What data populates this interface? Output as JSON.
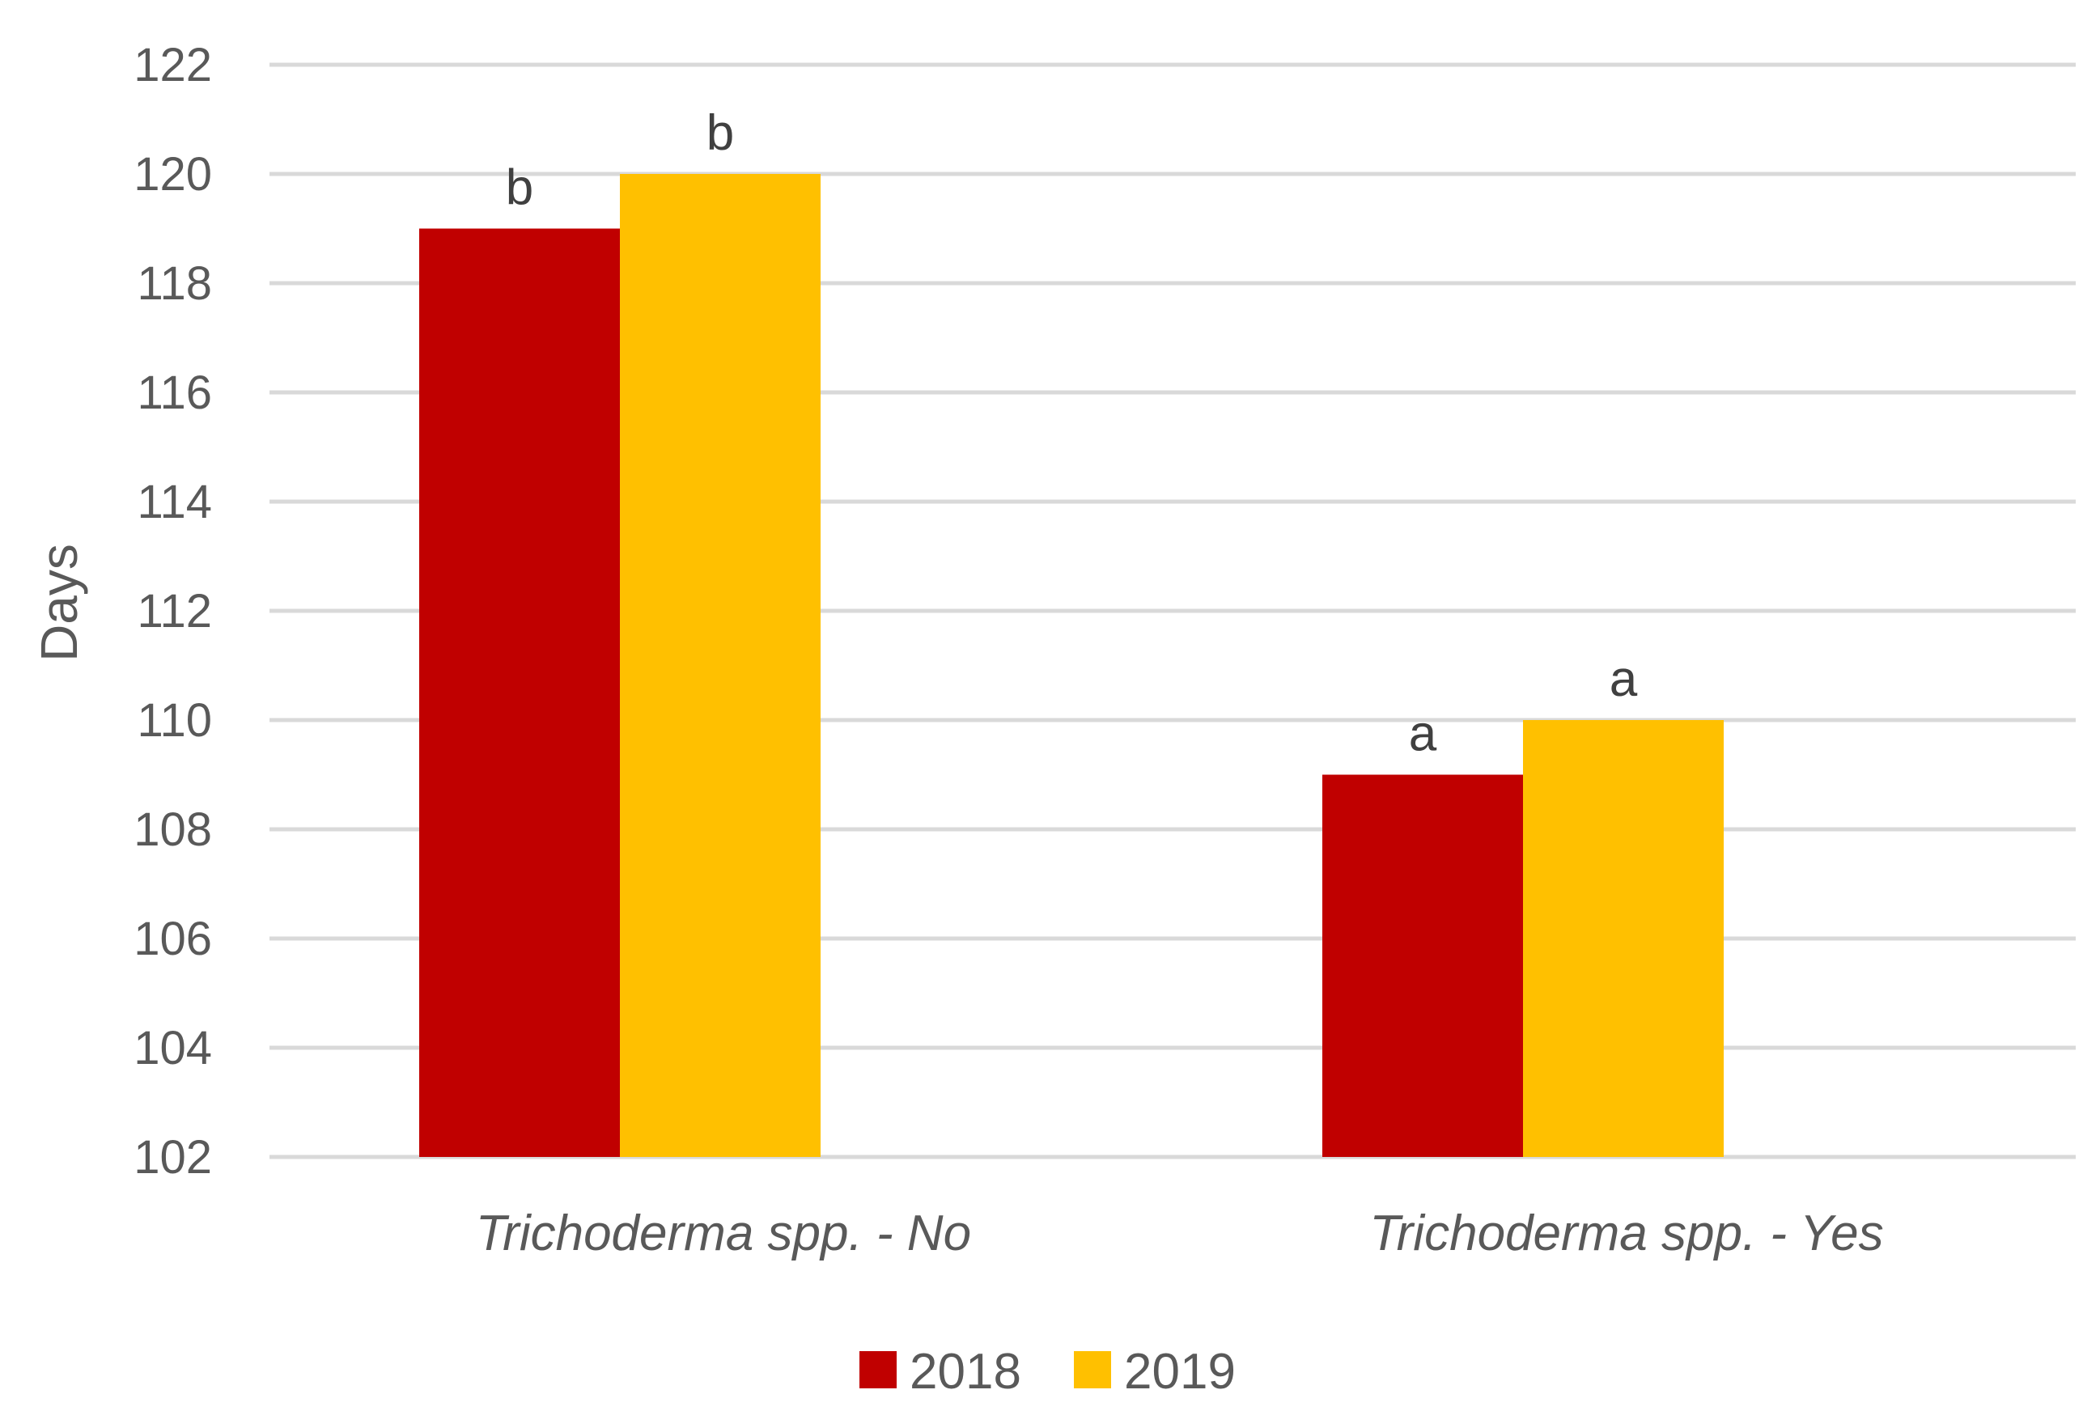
{
  "chart_data": {
    "type": "bar",
    "title": "",
    "xlabel": "",
    "ylabel": "Days",
    "ylim": [
      102,
      122
    ],
    "yticks": [
      102,
      104,
      106,
      108,
      110,
      112,
      114,
      116,
      118,
      120,
      122
    ],
    "grid": true,
    "legend_position": "bottom",
    "categories": [
      "Trichoderma spp. -  No",
      "Trichoderma spp. -  Yes"
    ],
    "series": [
      {
        "name": "2018",
        "color": "#C00000",
        "values": [
          119,
          109
        ],
        "labels": [
          "b",
          "a"
        ]
      },
      {
        "name": "2019",
        "color": "#FFC000",
        "values": [
          120,
          110
        ],
        "labels": [
          "b",
          "a"
        ]
      }
    ]
  }
}
